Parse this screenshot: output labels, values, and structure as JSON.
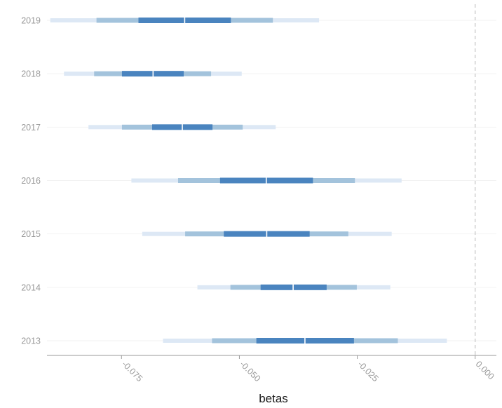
{
  "chart_data": {
    "type": "interval",
    "title": "",
    "xlabel": "betas",
    "ylabel": "",
    "xlim": [
      -0.0908,
      0.0045
    ],
    "x_ticks": [
      -0.075,
      -0.05,
      -0.025,
      0.0
    ],
    "x_tick_labels": [
      "-0.075",
      "-0.050",
      "-0.025",
      "0.000"
    ],
    "reference_line": 0.0,
    "grid": "horizontal-major",
    "categories": [
      "2019",
      "2018",
      "2017",
      "2016",
      "2015",
      "2014",
      "2013"
    ],
    "intervals": [
      {
        "label": "2019",
        "median": -0.0616,
        "inner": [
          -0.0714,
          -0.0518
        ],
        "middle": [
          -0.0803,
          -0.0429
        ],
        "outer": [
          -0.0901,
          -0.0331
        ]
      },
      {
        "label": "2018",
        "median": -0.0683,
        "inner": [
          -0.0749,
          -0.0618
        ],
        "middle": [
          -0.0808,
          -0.056
        ],
        "outer": [
          -0.0872,
          -0.0495
        ]
      },
      {
        "label": "2017",
        "median": -0.0621,
        "inner": [
          -0.0685,
          -0.0557
        ],
        "middle": [
          -0.0749,
          -0.0493
        ],
        "outer": [
          -0.082,
          -0.0423
        ]
      },
      {
        "label": "2016",
        "median": -0.0443,
        "inner": [
          -0.0541,
          -0.0344
        ],
        "middle": [
          -0.063,
          -0.0255
        ],
        "outer": [
          -0.0729,
          -0.0156
        ]
      },
      {
        "label": "2015",
        "median": -0.0442,
        "inner": [
          -0.0533,
          -0.0351
        ],
        "middle": [
          -0.0615,
          -0.0269
        ],
        "outer": [
          -0.0706,
          -0.0177
        ]
      },
      {
        "label": "2014",
        "median": -0.0386,
        "inner": [
          -0.0455,
          -0.0315
        ],
        "middle": [
          -0.0519,
          -0.0251
        ],
        "outer": [
          -0.0589,
          -0.018
        ]
      },
      {
        "label": "2013",
        "median": -0.0361,
        "inner": [
          -0.0464,
          -0.0257
        ],
        "middle": [
          -0.0558,
          -0.0164
        ],
        "outer": [
          -0.0662,
          -0.006
        ]
      }
    ],
    "colors": {
      "outer": "#dde8f5",
      "middle": "#a3c3dc",
      "inner": "#4a84bf",
      "median": "#ffffff",
      "axis": "#9a9a9a",
      "grid": "#f2f2f2",
      "reference_line": "#c4c4c4"
    }
  }
}
